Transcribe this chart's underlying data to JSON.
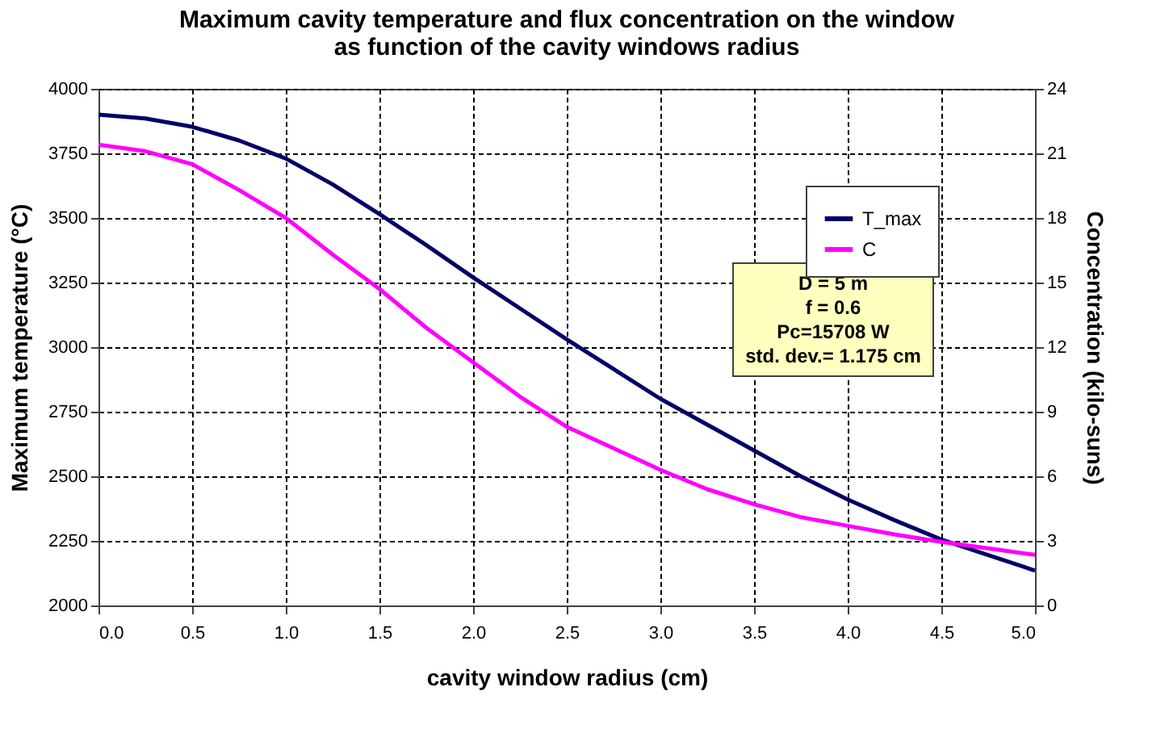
{
  "chart_data": {
    "type": "line",
    "title": [
      "Maximum cavity temperature and flux concentration on the window",
      "as function of the cavity windows radius"
    ],
    "xlabel": "cavity window radius (cm)",
    "ylabel": "Maximum temperature (°C)",
    "y2label": "Concentration (kilo-suns)",
    "x": [
      0,
      0.25,
      0.5,
      0.75,
      1.0,
      1.25,
      1.5,
      1.75,
      2.0,
      2.25,
      2.5,
      2.75,
      3.0,
      3.25,
      3.5,
      3.75,
      4.0,
      4.25,
      4.5,
      4.75,
      5.0
    ],
    "series": [
      {
        "name": "T_max",
        "color": "#000066",
        "values": [
          3900,
          3885,
          3853,
          3800,
          3730,
          3630,
          3515,
          3395,
          3270,
          3150,
          3030,
          2915,
          2800,
          2700,
          2600,
          2500,
          2410,
          2330,
          2255,
          2195,
          2135
        ]
      },
      {
        "name": "C",
        "color": "#ff00ff",
        "axis": "y2",
        "values": [
          21.4,
          21.1,
          20.5,
          19.3,
          18.0,
          16.3,
          14.7,
          12.9,
          11.3,
          9.7,
          8.3,
          7.3,
          6.3,
          5.4,
          4.7,
          4.1,
          3.7,
          3.3,
          2.95,
          2.65,
          2.35
        ]
      }
    ],
    "xlim": [
      0,
      5
    ],
    "xticks": [
      {
        "value": 0,
        "label": "0.0"
      },
      0.5,
      {
        "value": 1,
        "label": "1.0"
      },
      1.5,
      {
        "value": 2,
        "label": "2.0"
      },
      2.5,
      {
        "value": 3,
        "label": "3.0"
      },
      3.5,
      {
        "value": 4,
        "label": "4.0"
      },
      4.5,
      {
        "value": 5,
        "label": "5.0"
      }
    ],
    "ylim": [
      2000,
      4000
    ],
    "yticks": [
      2000,
      2250,
      2500,
      2750,
      3000,
      3250,
      3500,
      3750,
      4000
    ],
    "y2lim": [
      0,
      24
    ],
    "y2ticks": [
      0,
      3,
      6,
      9,
      12,
      15,
      18,
      21,
      24
    ],
    "annotations": [
      "D = 5 m",
      "f = 0.6",
      "Pc=15708 W",
      "std. dev.= 1.175 cm"
    ],
    "grid": true,
    "legend": "top right",
    "line_style": "solid",
    "marker": "none"
  }
}
